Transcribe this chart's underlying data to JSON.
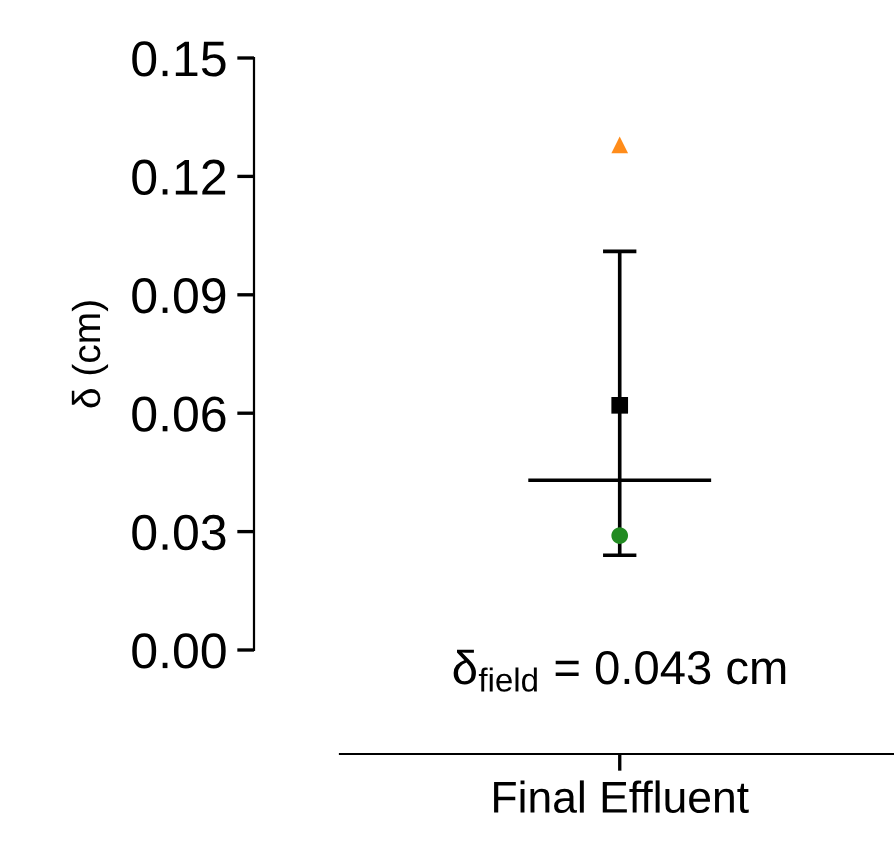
{
  "chart_data": {
    "type": "scatter",
    "ylabel": "δ (cm)",
    "categories": [
      "Final Effluent"
    ],
    "ylim": [
      0,
      0.15
    ],
    "yticks": [
      {
        "value": 0,
        "label": "0.00"
      },
      {
        "value": 0.03,
        "label": "0.03"
      },
      {
        "value": 0.06,
        "label": "0.06"
      },
      {
        "value": 0.09,
        "label": "0.09"
      },
      {
        "value": 0.12,
        "label": "0.12"
      },
      {
        "value": 0.15,
        "label": "0.15"
      }
    ],
    "grid": false,
    "legend": false,
    "series": [
      {
        "color": "#000000",
        "values": [
          0.062
        ],
        "errors": [
          [
            0.024,
            0.101
          ]
        ],
        "marker": "square"
      },
      {
        "color": "#ff8c1a",
        "values": [
          0.128
        ],
        "marker": "triangle"
      },
      {
        "color": "#228b22",
        "values": [
          0.029
        ],
        "marker": "circle"
      }
    ],
    "ref_lines": [
      {
        "axis": "y",
        "value": 0.043,
        "color": "#000000"
      }
    ],
    "annotations": [
      "δ$_{field}$ = 0.043 cm"
    ]
  }
}
